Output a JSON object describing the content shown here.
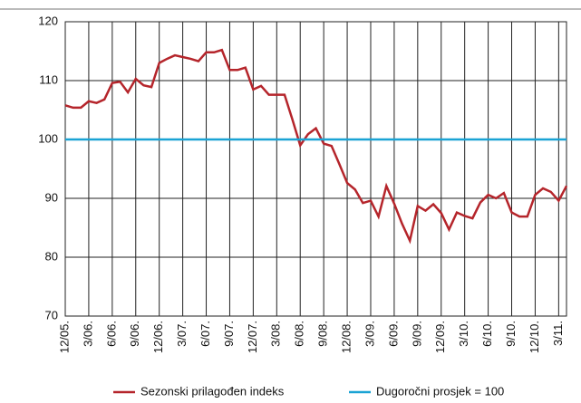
{
  "chart_data": {
    "type": "line",
    "categories": [
      "12/05.",
      null,
      null,
      "3/06.",
      null,
      null,
      "6/06.",
      null,
      null,
      "9/06.",
      null,
      null,
      "12/06.",
      null,
      null,
      "3/07.",
      null,
      null,
      "6/07.",
      null,
      null,
      "9/07.",
      null,
      null,
      "12/07.",
      null,
      null,
      "3/08.",
      null,
      null,
      "6/08.",
      null,
      null,
      "9/08.",
      null,
      null,
      "12/08.",
      null,
      null,
      "3/09.",
      null,
      null,
      "6/09.",
      null,
      null,
      "9/09.",
      null,
      null,
      "12/09.",
      null,
      null,
      "3/10.",
      null,
      null,
      "6/10.",
      null,
      null,
      "9/10.",
      null,
      null,
      "12/10.",
      null,
      null,
      "3/11.",
      null
    ],
    "series": [
      {
        "name": "Sezonski prilagođen indeks",
        "color": "#b5252b",
        "values": [
          105.8,
          105.4,
          105.4,
          106.5,
          106.2,
          106.8,
          109.6,
          109.8,
          108,
          110.3,
          109.2,
          108.9,
          113,
          113.7,
          114.3,
          114,
          113.7,
          113.3,
          114.8,
          114.8,
          115.2,
          111.8,
          111.8,
          112.2,
          108.5,
          109.1,
          107.6,
          107.6,
          107.6,
          103.4,
          99,
          100.9,
          101.9,
          99.3,
          98.9,
          95.8,
          92.6,
          91.5,
          89.2,
          89.6,
          86.9,
          92.1,
          89.1,
          85.7,
          82.8,
          88.7,
          87.9,
          89,
          87.5,
          84.7,
          87.6,
          87,
          86.6,
          89.3,
          90.6,
          90,
          90.9,
          87.6,
          86.9,
          86.9,
          90.6,
          91.7,
          91.1,
          89.6,
          92.1
        ]
      },
      {
        "name": "Dugoročni prosjek = 100",
        "color": "#1aa3d4",
        "values": [
          100,
          100,
          100,
          100,
          100,
          100,
          100,
          100,
          100,
          100,
          100,
          100,
          100,
          100,
          100,
          100,
          100,
          100,
          100,
          100,
          100,
          100,
          100,
          100,
          100,
          100,
          100,
          100,
          100,
          100,
          100,
          100,
          100,
          100,
          100,
          100,
          100,
          100,
          100,
          100,
          100,
          100,
          100,
          100,
          100,
          100,
          100,
          100,
          100,
          100,
          100,
          100,
          100,
          100,
          100,
          100,
          100,
          100,
          100,
          100,
          100,
          100,
          100,
          100,
          100
        ]
      }
    ],
    "ylim": [
      70,
      120
    ],
    "yticks": [
      70,
      80,
      90,
      100,
      110,
      120
    ],
    "grid": true
  }
}
